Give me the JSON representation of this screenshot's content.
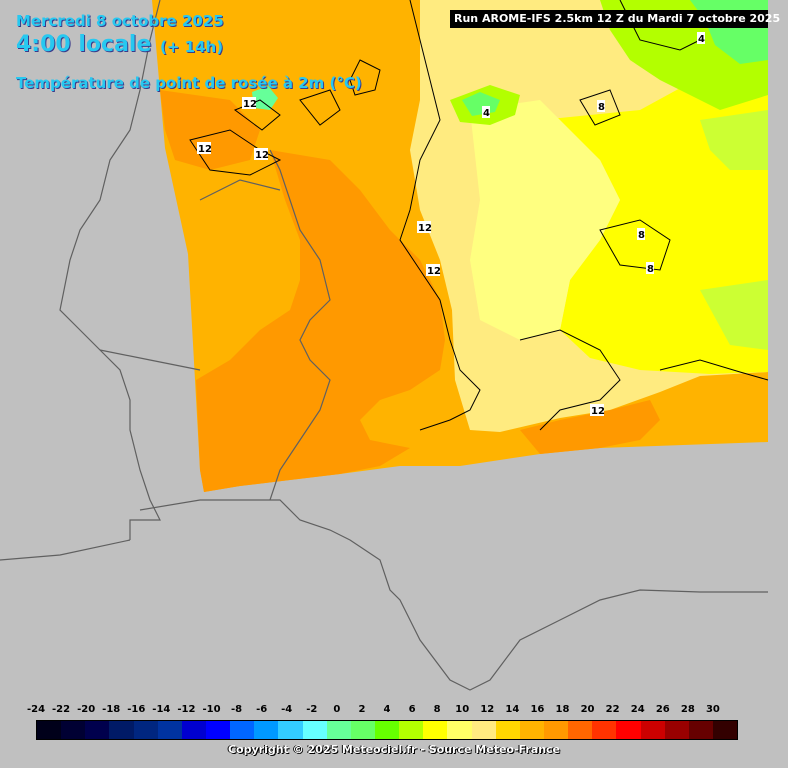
{
  "header": {
    "date": "Mercredi 8 octobre 2025",
    "local_time": "4:00 locale",
    "lead_time": "(+ 14h)",
    "variable": "Température de point de rosée à 2m (°C)"
  },
  "run_info": "Run AROME-IFS 2.5km 12 Z du Mardi 7 octobre 2025",
  "contour_labels": [
    "12",
    "12",
    "12",
    "12",
    "12",
    "12",
    "8",
    "8",
    "8",
    "4",
    "4"
  ],
  "legend": {
    "labels": [
      "-24",
      "-22",
      "-20",
      "-18",
      "-16",
      "-14",
      "-12",
      "-10",
      "-8",
      "-6",
      "-4",
      "-2",
      "0",
      "2",
      "4",
      "6",
      "8",
      "10",
      "12",
      "14",
      "16",
      "18",
      "20",
      "22",
      "24",
      "26",
      "28",
      "30"
    ],
    "colors": [
      "#00001a",
      "#000033",
      "#00004d",
      "#001a66",
      "#002680",
      "#0033a0",
      "#0000d0",
      "#0000ff",
      "#0066ff",
      "#0099ff",
      "#33ccff",
      "#66ffff",
      "#66ff99",
      "#66ff66",
      "#66ff00",
      "#b3ff00",
      "#ffff00",
      "#ffff66",
      "#ffeb80",
      "#ffd700",
      "#ffb300",
      "#ff9900",
      "#ff6600",
      "#ff3300",
      "#ff0000",
      "#cc0000",
      "#990000",
      "#660000",
      "#330000"
    ]
  },
  "copyright": "Copyright © 2025 Meteociel.fr - Source Meteo-France"
}
